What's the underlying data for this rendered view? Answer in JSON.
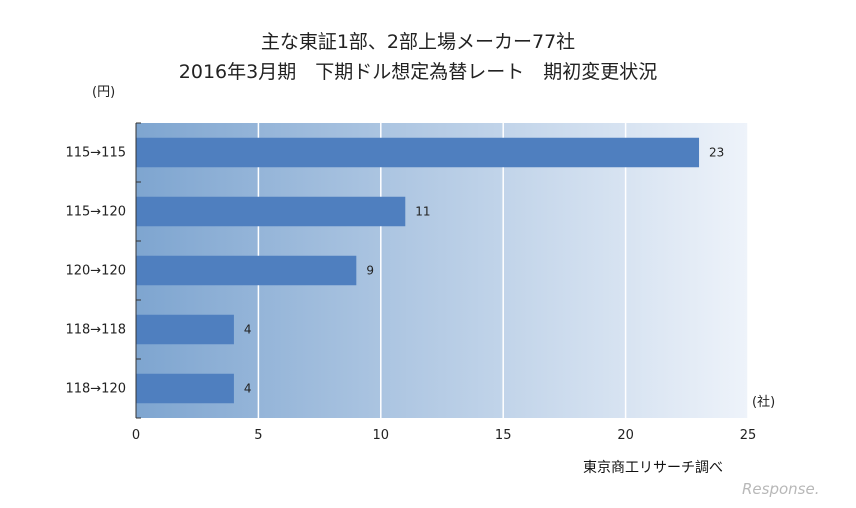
{
  "chart_data": {
    "type": "bar",
    "orientation": "horizontal",
    "title": "主な東証1部、2部上場メーカー77社",
    "subtitle": "2016年3月期　下期ドル想定為替レート　期初変更状況",
    "ylabel": "(円)",
    "xlabel": "(社)",
    "categories": [
      "115→115",
      "115→120",
      "120→120",
      "118→118",
      "118→120"
    ],
    "values": [
      23,
      11,
      9,
      4,
      4
    ],
    "xlim": [
      0,
      25
    ],
    "xticks": [
      0,
      5,
      10,
      15,
      20,
      25
    ],
    "grid": true,
    "bar_color": "#4f7fbf",
    "background_gradient": [
      "#7ea5d0",
      "#eef3fa"
    ]
  },
  "footer": {
    "source": "東京商工リサーチ調べ",
    "watermark": "Response."
  }
}
